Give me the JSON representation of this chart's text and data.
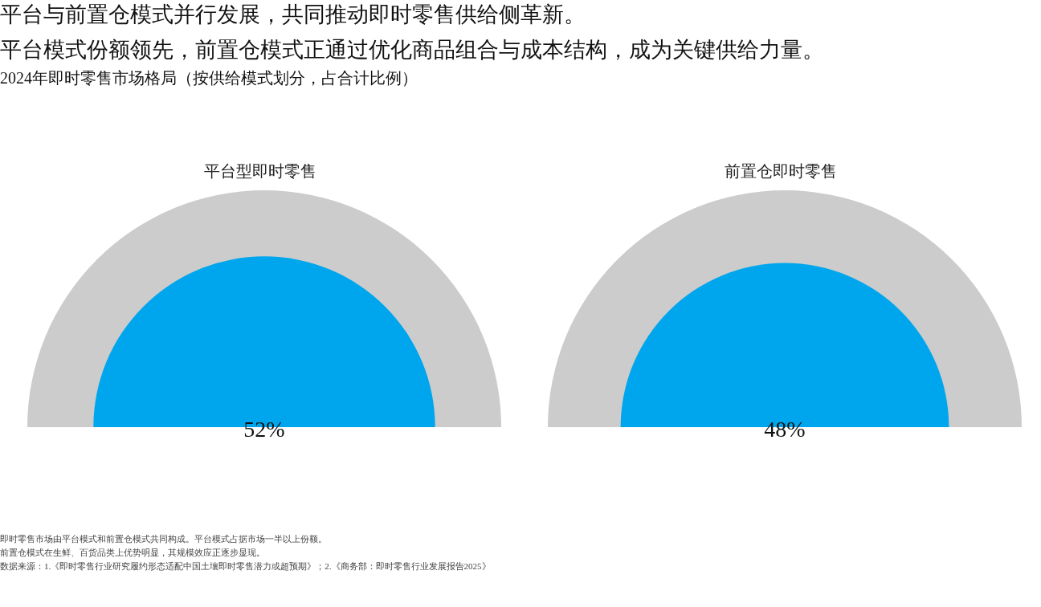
{
  "chart_data": [
    {
      "type": "other",
      "title": "平台与前置仓模式并行发展，共同推动即时零售供给侧革新。",
      "subtitle": "平台模式份额领先，前置仓模式正通过优化商品组合与成本结构，成为关键供给力量。",
      "annotations": [
        "2024年即时零售市场格局（按供给模式划分，占合计比例）"
      ],
      "categories": [
        "平台型即时零售"
      ],
      "values": [
        52
      ],
      "color": "#00a6ed",
      "value_labels": [
        "52%"
      ]
    },
    {
      "type": "other",
      "categories": [
        "前置仓即时零售"
      ],
      "values": [
        48
      ],
      "color": "#00a6ed",
      "value_labels": [
        "48%"
      ],
      "annotations": [
        "即时零售市场由平台模式和前置仓模式共同构成。平台模式占据市场一半以上份额。",
        "前置仓模式在生鲜、百货品类上优势明显，其规模效应正逐步显现。",
        "数据来源：1.《即时零售行业研究履约形态适配中国土壤即时零售潜力或超预期》；2.《商务部：即时零售行业发展报告2025》"
      ]
    }
  ]
}
